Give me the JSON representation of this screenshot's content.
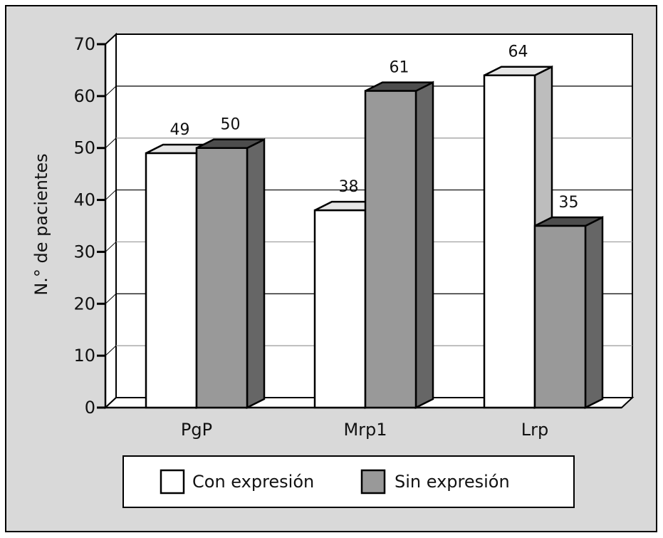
{
  "chart_data": {
    "type": "bar",
    "style": "3d-clustered",
    "title": "",
    "xlabel": "",
    "ylabel": "N.° de pacientes",
    "ylim": [
      0,
      70
    ],
    "yticks": [
      0,
      10,
      20,
      30,
      40,
      50,
      60,
      70
    ],
    "grid": true,
    "categories": [
      "PgP",
      "Mrp1",
      "Lrp"
    ],
    "series": [
      {
        "name": "Con expresión",
        "values": [
          49,
          38,
          64
        ],
        "color": "#ffffff",
        "top_color": "#e6e6e6",
        "side_color": "#bdbdbd"
      },
      {
        "name": "Sin expresión",
        "values": [
          50,
          61,
          35
        ],
        "color": "#999999",
        "top_color": "#4d4d4d",
        "side_color": "#666666"
      }
    ],
    "legend_position": "bottom",
    "data_labels": true
  },
  "colors": {
    "background": "#d9d9d9",
    "plot": "#ffffff",
    "axis": "#000000"
  }
}
